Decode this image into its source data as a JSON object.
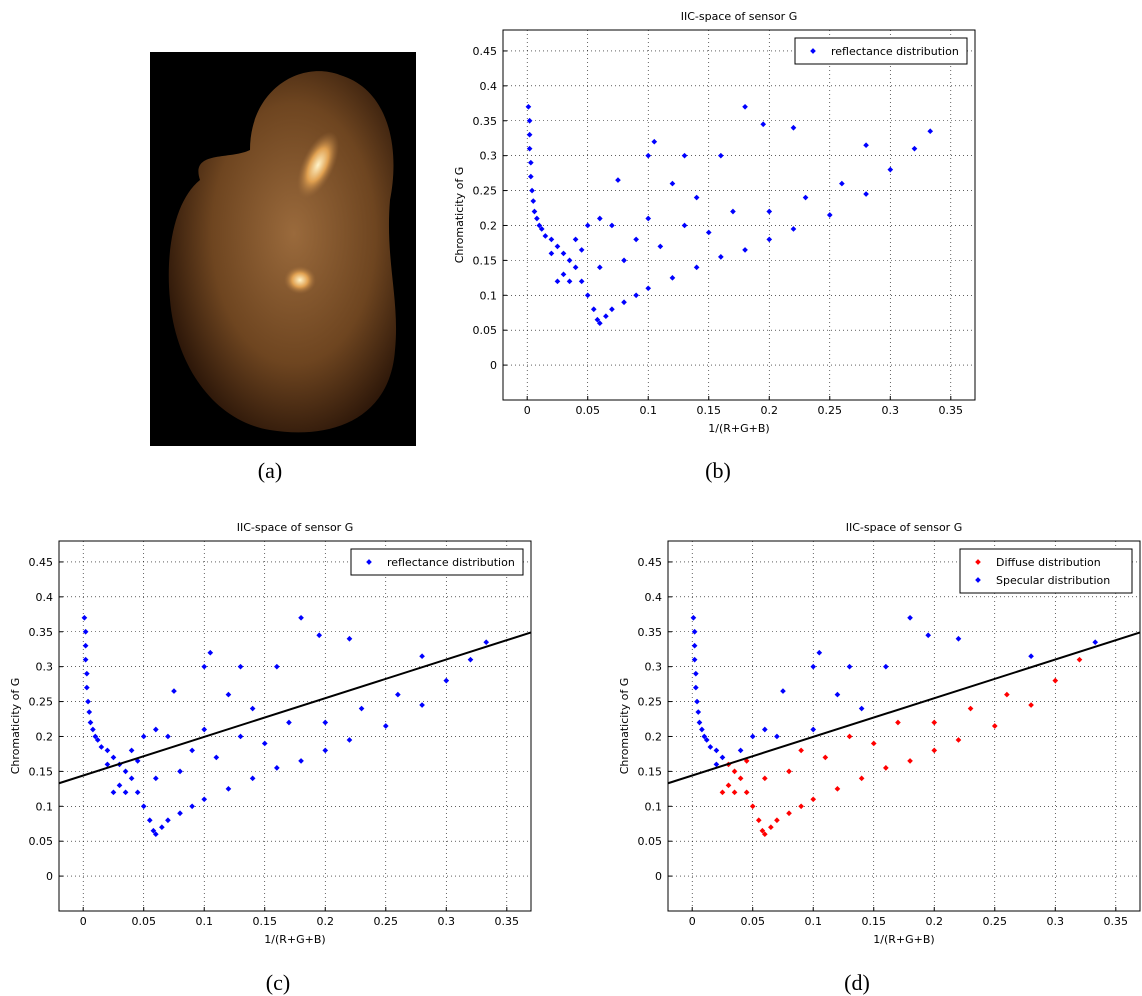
{
  "figure": {
    "captions": [
      "(a)",
      "(b)",
      "(c)",
      "(d)"
    ]
  },
  "chart_data": [
    {
      "type": "scatter",
      "title": "IIC-space of sensor G",
      "x_label": "1/(R+G+B)",
      "y_label": "Chromaticity of G",
      "xlim": [
        -0.02,
        0.37
      ],
      "ylim": [
        -0.05,
        0.48
      ],
      "xticks": [
        0,
        0.05,
        0.1,
        0.15,
        0.2,
        0.25,
        0.3,
        0.35
      ],
      "yticks": [
        0,
        0.05,
        0.1,
        0.15,
        0.2,
        0.25,
        0.3,
        0.35,
        0.4,
        0.45
      ],
      "grid": true,
      "legend": "upper right",
      "series": [
        {
          "name": "reflectance distribution",
          "color": "#0000ff",
          "x": [
            0.001,
            0.002,
            0.002,
            0.002,
            0.003,
            0.003,
            0.004,
            0.005,
            0.006,
            0.008,
            0.01,
            0.012,
            0.015,
            0.02,
            0.025,
            0.03,
            0.035,
            0.04,
            0.045,
            0.05,
            0.055,
            0.058,
            0.06,
            0.065,
            0.07,
            0.08,
            0.09,
            0.1,
            0.12,
            0.14,
            0.16,
            0.18,
            0.2,
            0.22,
            0.25,
            0.28,
            0.3,
            0.32,
            0.333,
            0.02,
            0.03,
            0.04,
            0.05,
            0.06,
            0.07,
            0.08,
            0.09,
            0.1,
            0.11,
            0.13,
            0.15,
            0.17,
            0.2,
            0.23,
            0.26,
            0.075,
            0.1,
            0.105,
            0.13,
            0.16,
            0.18,
            0.195,
            0.22,
            0.28,
            0.14,
            0.12,
            0.06,
            0.045,
            0.035,
            0.025
          ],
          "values": [
            0.37,
            0.35,
            0.33,
            0.31,
            0.29,
            0.27,
            0.25,
            0.235,
            0.22,
            0.21,
            0.2,
            0.195,
            0.185,
            0.18,
            0.17,
            0.16,
            0.15,
            0.14,
            0.12,
            0.1,
            0.08,
            0.065,
            0.06,
            0.07,
            0.08,
            0.09,
            0.1,
            0.11,
            0.125,
            0.14,
            0.155,
            0.165,
            0.18,
            0.195,
            0.215,
            0.245,
            0.28,
            0.31,
            0.335,
            0.16,
            0.13,
            0.18,
            0.2,
            0.14,
            0.2,
            0.15,
            0.18,
            0.21,
            0.17,
            0.2,
            0.19,
            0.22,
            0.22,
            0.24,
            0.26,
            0.265,
            0.3,
            0.32,
            0.3,
            0.3,
            0.37,
            0.345,
            0.34,
            0.315,
            0.24,
            0.26,
            0.21,
            0.165,
            0.12,
            0.12
          ]
        }
      ]
    },
    {
      "type": "scatter",
      "title": "IIC-space of sensor G",
      "x_label": "1/(R+G+B)",
      "y_label": "Chromaticity of G",
      "xlim": [
        -0.02,
        0.37
      ],
      "ylim": [
        -0.05,
        0.48
      ],
      "xticks": [
        0,
        0.05,
        0.1,
        0.15,
        0.2,
        0.25,
        0.3,
        0.35
      ],
      "yticks": [
        0,
        0.05,
        0.1,
        0.15,
        0.2,
        0.25,
        0.3,
        0.35,
        0.4,
        0.45
      ],
      "grid": true,
      "legend": "upper right",
      "series": [
        {
          "name": "reflectance distribution",
          "color": "#0000ff",
          "x": [
            0.001,
            0.002,
            0.002,
            0.002,
            0.003,
            0.003,
            0.004,
            0.005,
            0.006,
            0.008,
            0.01,
            0.012,
            0.015,
            0.02,
            0.025,
            0.03,
            0.035,
            0.04,
            0.045,
            0.05,
            0.055,
            0.058,
            0.06,
            0.065,
            0.07,
            0.08,
            0.09,
            0.1,
            0.12,
            0.14,
            0.16,
            0.18,
            0.2,
            0.22,
            0.25,
            0.28,
            0.3,
            0.32,
            0.333,
            0.02,
            0.03,
            0.04,
            0.05,
            0.06,
            0.07,
            0.08,
            0.09,
            0.1,
            0.11,
            0.13,
            0.15,
            0.17,
            0.2,
            0.23,
            0.26,
            0.075,
            0.1,
            0.105,
            0.13,
            0.16,
            0.18,
            0.195,
            0.22,
            0.28,
            0.14,
            0.12,
            0.06,
            0.045,
            0.035,
            0.025
          ],
          "values": [
            0.37,
            0.35,
            0.33,
            0.31,
            0.29,
            0.27,
            0.25,
            0.235,
            0.22,
            0.21,
            0.2,
            0.195,
            0.185,
            0.18,
            0.17,
            0.16,
            0.15,
            0.14,
            0.12,
            0.1,
            0.08,
            0.065,
            0.06,
            0.07,
            0.08,
            0.09,
            0.1,
            0.11,
            0.125,
            0.14,
            0.155,
            0.165,
            0.18,
            0.195,
            0.215,
            0.245,
            0.28,
            0.31,
            0.335,
            0.16,
            0.13,
            0.18,
            0.2,
            0.14,
            0.2,
            0.15,
            0.18,
            0.21,
            0.17,
            0.2,
            0.19,
            0.22,
            0.22,
            0.24,
            0.26,
            0.265,
            0.3,
            0.32,
            0.3,
            0.3,
            0.37,
            0.345,
            0.34,
            0.315,
            0.24,
            0.26,
            0.21,
            0.165,
            0.12,
            0.12
          ]
        },
        {
          "type": "line",
          "color": "#000000",
          "x": [
            -0.02,
            0.37
          ],
          "values": [
            0.133,
            0.349
          ]
        }
      ]
    },
    {
      "type": "scatter",
      "title": "IIC-space of sensor G",
      "x_label": "1/(R+G+B)",
      "y_label": "Chromaticity of G",
      "xlim": [
        -0.02,
        0.37
      ],
      "ylim": [
        -0.05,
        0.48
      ],
      "xticks": [
        0,
        0.05,
        0.1,
        0.15,
        0.2,
        0.25,
        0.3,
        0.35
      ],
      "yticks": [
        0,
        0.05,
        0.1,
        0.15,
        0.2,
        0.25,
        0.3,
        0.35,
        0.4,
        0.45
      ],
      "grid": true,
      "legend": "upper right",
      "series": [
        {
          "name": "Diffuse distribution",
          "color": "#ff0000",
          "x": [
            0.03,
            0.035,
            0.04,
            0.045,
            0.05,
            0.055,
            0.058,
            0.06,
            0.065,
            0.07,
            0.08,
            0.09,
            0.1,
            0.12,
            0.14,
            0.16,
            0.18,
            0.2,
            0.22,
            0.25,
            0.28,
            0.3,
            0.32,
            0.03,
            0.06,
            0.08,
            0.09,
            0.11,
            0.13,
            0.15,
            0.17,
            0.2,
            0.23,
            0.26,
            0.045,
            0.035,
            0.025
          ],
          "values": [
            0.16,
            0.15,
            0.14,
            0.12,
            0.1,
            0.08,
            0.065,
            0.06,
            0.07,
            0.08,
            0.09,
            0.1,
            0.11,
            0.125,
            0.14,
            0.155,
            0.165,
            0.18,
            0.195,
            0.215,
            0.245,
            0.28,
            0.31,
            0.13,
            0.14,
            0.15,
            0.18,
            0.17,
            0.2,
            0.19,
            0.22,
            0.22,
            0.24,
            0.26,
            0.165,
            0.12,
            0.12
          ]
        },
        {
          "name": "Specular distribution",
          "color": "#0000ff",
          "x": [
            0.001,
            0.002,
            0.002,
            0.002,
            0.003,
            0.003,
            0.004,
            0.005,
            0.006,
            0.008,
            0.01,
            0.012,
            0.015,
            0.02,
            0.025,
            0.333,
            0.02,
            0.04,
            0.05,
            0.07,
            0.1,
            0.075,
            0.1,
            0.105,
            0.13,
            0.16,
            0.18,
            0.195,
            0.22,
            0.28,
            0.14,
            0.12,
            0.06
          ],
          "values": [
            0.37,
            0.35,
            0.33,
            0.31,
            0.29,
            0.27,
            0.25,
            0.235,
            0.22,
            0.21,
            0.2,
            0.195,
            0.185,
            0.18,
            0.17,
            0.335,
            0.16,
            0.18,
            0.2,
            0.2,
            0.21,
            0.265,
            0.3,
            0.32,
            0.3,
            0.3,
            0.37,
            0.345,
            0.34,
            0.315,
            0.24,
            0.26,
            0.21
          ]
        },
        {
          "type": "line",
          "color": "#000000",
          "x": [
            -0.02,
            0.37
          ],
          "values": [
            0.133,
            0.349
          ]
        }
      ]
    }
  ]
}
